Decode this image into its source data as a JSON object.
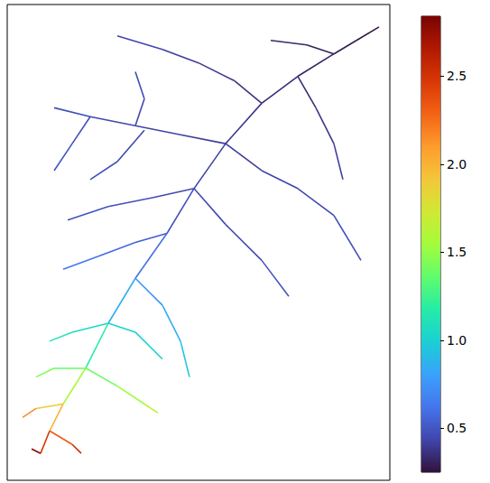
{
  "chart_data": {
    "type": "river_network",
    "tick_labels": false,
    "xlim": [
      8,
      432
    ],
    "ylim": [
      5,
      535
    ],
    "streams": [
      {
        "x": [
          420,
          395,
          370,
          330,
          290,
          250,
          215,
          185,
          150,
          120,
          95,
          70,
          55,
          45
        ],
        "y": [
          30,
          45,
          60,
          85,
          115,
          160,
          210,
          260,
          310,
          360,
          410,
          450,
          480,
          505
        ],
        "values": [
          0.25,
          0.28,
          0.3,
          0.33,
          0.36,
          0.4,
          0.45,
          0.5,
          0.7,
          1.0,
          1.35,
          1.8,
          2.2,
          2.75
        ]
      },
      {
        "x": [
          250,
          200,
          150,
          100,
          60
        ],
        "y": [
          160,
          150,
          140,
          130,
          120
        ],
        "values": [
          0.4,
          0.42,
          0.44,
          0.46,
          0.48
        ]
      },
      {
        "x": [
          290,
          260,
          220,
          180,
          130
        ],
        "y": [
          115,
          90,
          70,
          55,
          40
        ],
        "values": [
          0.36,
          0.38,
          0.4,
          0.42,
          0.45
        ]
      },
      {
        "x": [
          215,
          170,
          120,
          75
        ],
        "y": [
          210,
          220,
          230,
          245
        ],
        "values": [
          0.45,
          0.46,
          0.48,
          0.5
        ]
      },
      {
        "x": [
          250,
          290,
          330,
          370,
          400
        ],
        "y": [
          160,
          190,
          210,
          240,
          290
        ],
        "values": [
          0.4,
          0.42,
          0.44,
          0.46,
          0.48
        ]
      },
      {
        "x": [
          215,
          250,
          290,
          320
        ],
        "y": [
          210,
          250,
          290,
          330
        ],
        "values": [
          0.45,
          0.46,
          0.48,
          0.5
        ]
      },
      {
        "x": [
          185,
          150,
          110,
          70
        ],
        "y": [
          260,
          270,
          285,
          300
        ],
        "values": [
          0.5,
          0.55,
          0.6,
          0.65
        ]
      },
      {
        "x": [
          150,
          180,
          200,
          210
        ],
        "y": [
          310,
          340,
          380,
          420
        ],
        "values": [
          0.7,
          0.8,
          0.9,
          1.0
        ]
      },
      {
        "x": [
          120,
          80,
          55
        ],
        "y": [
          360,
          370,
          380
        ],
        "values": [
          1.0,
          1.1,
          1.15
        ]
      },
      {
        "x": [
          95,
          130,
          160,
          175
        ],
        "y": [
          410,
          430,
          450,
          460
        ],
        "values": [
          1.35,
          1.45,
          1.6,
          1.7
        ]
      },
      {
        "x": [
          70,
          40,
          25
        ],
        "y": [
          450,
          455,
          465
        ],
        "values": [
          1.8,
          2.0,
          2.3
        ]
      },
      {
        "x": [
          55,
          80,
          90
        ],
        "y": [
          480,
          495,
          505
        ],
        "values": [
          2.2,
          2.45,
          2.6
        ]
      },
      {
        "x": [
          45,
          35
        ],
        "y": [
          505,
          500
        ],
        "values": [
          2.75,
          2.8
        ]
      },
      {
        "x": [
          330,
          350,
          370,
          380
        ],
        "y": [
          85,
          120,
          160,
          200
        ],
        "values": [
          0.33,
          0.36,
          0.4,
          0.42
        ]
      },
      {
        "x": [
          370,
          340,
          300
        ],
        "y": [
          60,
          50,
          45
        ],
        "values": [
          0.3,
          0.32,
          0.35
        ]
      },
      {
        "x": [
          160,
          130,
          100
        ],
        "y": [
          145,
          180,
          200
        ],
        "values": [
          0.44,
          0.46,
          0.48
        ]
      },
      {
        "x": [
          100,
          80,
          60
        ],
        "y": [
          130,
          160,
          190
        ],
        "values": [
          0.46,
          0.48,
          0.5
        ]
      },
      {
        "x": [
          150,
          160,
          150
        ],
        "y": [
          140,
          110,
          80
        ],
        "values": [
          0.44,
          0.45,
          0.47
        ]
      },
      {
        "x": [
          120,
          150,
          180
        ],
        "y": [
          360,
          370,
          400
        ],
        "values": [
          1.0,
          1.05,
          0.95
        ]
      },
      {
        "x": [
          95,
          60,
          40
        ],
        "y": [
          410,
          410,
          420
        ],
        "values": [
          1.35,
          1.4,
          1.5
        ]
      }
    ],
    "colorbar": {
      "range": [
        0.25,
        2.84
      ],
      "ticks": [
        0.5,
        {
          "value": 1,
          "label": "1.0"
        },
        1.5,
        {
          "value": 2,
          "label": "2.0"
        },
        2.5
      ]
    }
  }
}
